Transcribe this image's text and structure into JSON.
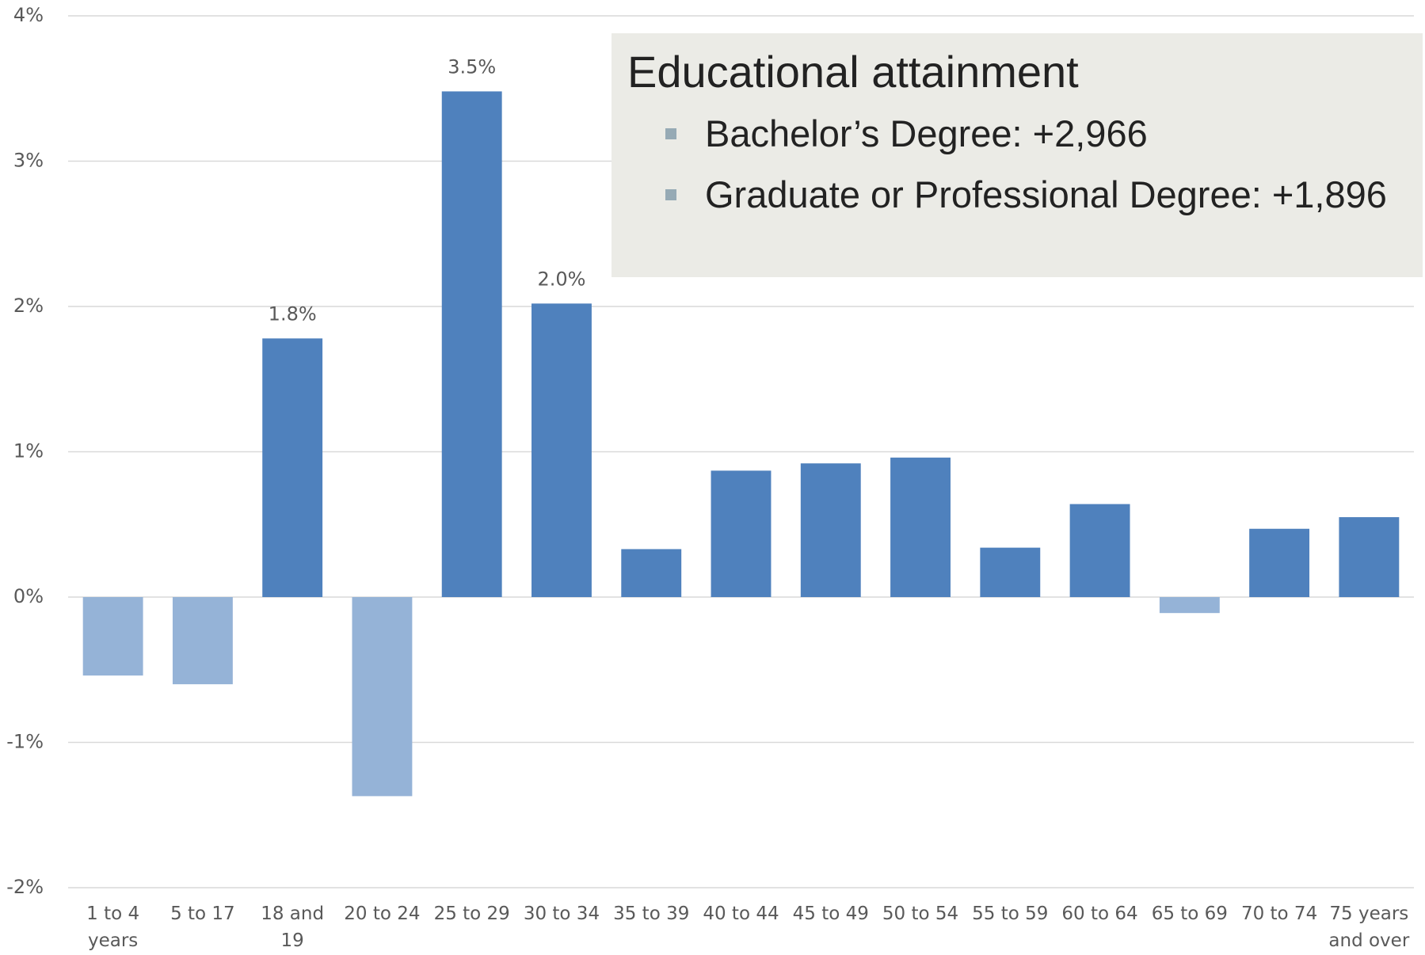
{
  "chart_data": {
    "type": "bar",
    "categories": [
      "1 to 4 years",
      "5 to 17",
      "18 and 19",
      "20 to 24",
      "25 to 29",
      "30 to 34",
      "35 to 39",
      "40 to 44",
      "45 to 49",
      "50 to 54",
      "55 to 59",
      "60 to 64",
      "65 to 69",
      "70 to 74",
      "75 years and over"
    ],
    "values": [
      -0.54,
      -0.6,
      1.78,
      -1.37,
      3.48,
      2.02,
      0.33,
      0.87,
      0.92,
      0.96,
      0.34,
      0.64,
      -0.11,
      0.47,
      0.55
    ],
    "value_labels": [
      null,
      null,
      "1.8%",
      null,
      "3.5%",
      "2.0%",
      null,
      null,
      null,
      null,
      null,
      null,
      null,
      null,
      null
    ],
    "color": "#4f81bd",
    "negative_color": "#95b3d7",
    "ylim": [
      -2,
      4
    ],
    "yticks": [
      {
        "value": -2,
        "label": "-2%"
      },
      {
        "value": -1,
        "label": "-1%"
      },
      {
        "value": 0,
        "label": "0%"
      },
      {
        "value": 1,
        "label": "1%"
      },
      {
        "value": 2,
        "label": "2%"
      },
      {
        "value": 3,
        "label": "3%"
      },
      {
        "value": 4,
        "label": "4%"
      }
    ],
    "grid": true,
    "annotation": {
      "title": "Educational attainment",
      "items": [
        "Bachelor’s Degree: +2,966",
        "Graduate or Professional Degree: +1,896"
      ]
    }
  }
}
